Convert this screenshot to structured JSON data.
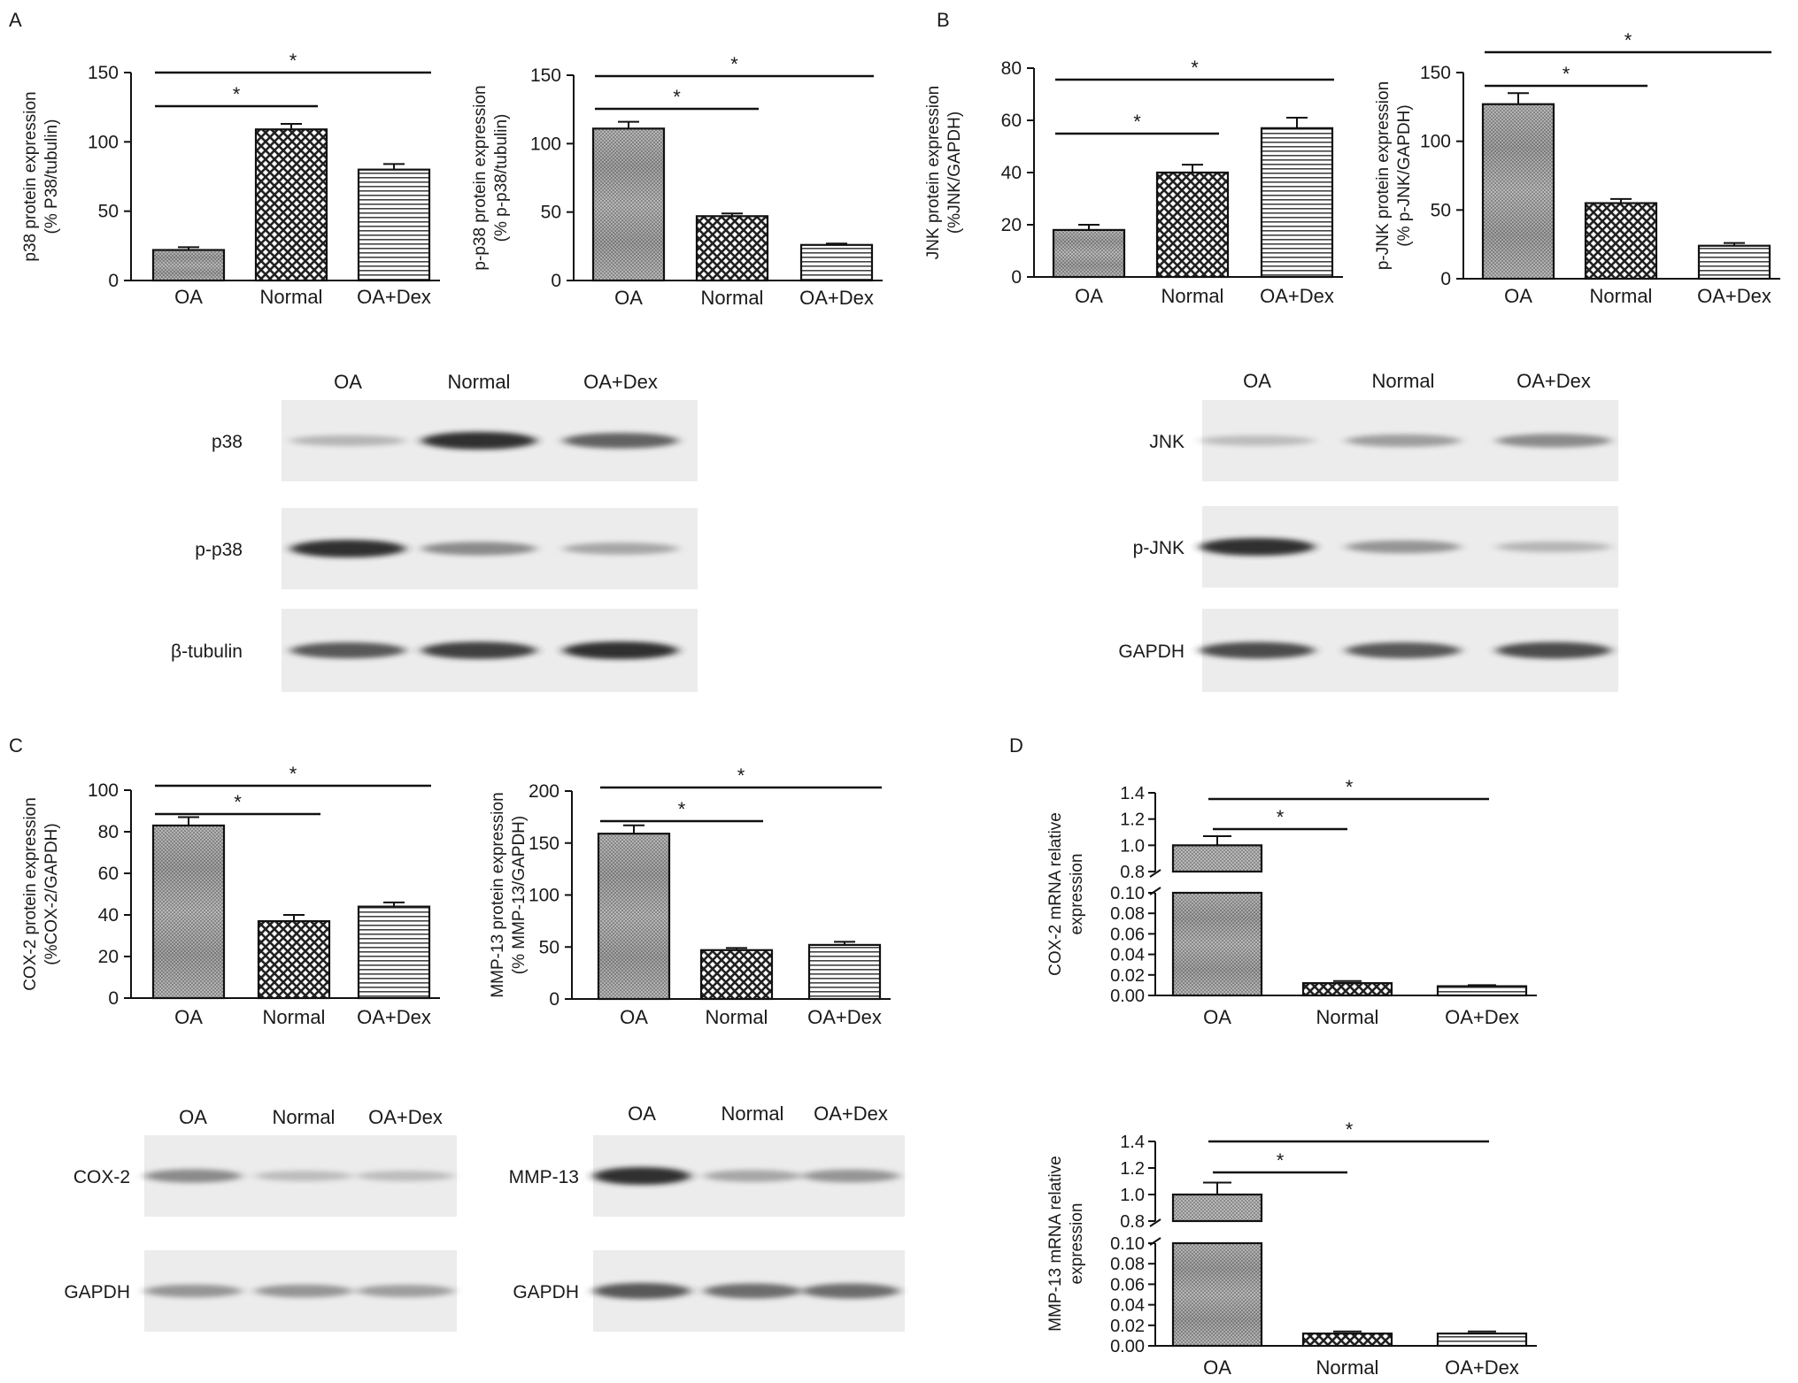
{
  "panels": [
    {
      "id": "A",
      "letter": "A"
    },
    {
      "id": "B",
      "letter": "B"
    },
    {
      "id": "C",
      "letter": "C"
    },
    {
      "id": "D",
      "letter": "D"
    }
  ],
  "chart_data": [
    {
      "id": "A-left",
      "type": "bar",
      "categories": [
        "OA",
        "Normal",
        "OA+Dex"
      ],
      "values": [
        22,
        109,
        80
      ],
      "errors": [
        2,
        4,
        4
      ],
      "ylabel": [
        "p38 protein expression",
        "(% P38/tubulin)"
      ],
      "ylim": [
        0,
        150
      ],
      "yticks": [
        "0",
        "50",
        "100",
        "150"
      ],
      "significance": [
        {
          "from": 0,
          "to": 1,
          "label": "*"
        },
        {
          "from": 0,
          "to": 2,
          "label": "*"
        }
      ]
    },
    {
      "id": "A-right",
      "type": "bar",
      "categories": [
        "OA",
        "Normal",
        "OA+Dex"
      ],
      "values": [
        111,
        47,
        26
      ],
      "errors": [
        5,
        2,
        1
      ],
      "ylabel": [
        "p-p38 protein expression",
        "(% p-p38/tubulin)"
      ],
      "ylim": [
        0,
        150
      ],
      "yticks": [
        "0",
        "50",
        "100",
        "150"
      ],
      "significance": [
        {
          "from": 0,
          "to": 1,
          "label": "*"
        },
        {
          "from": 0,
          "to": 2,
          "label": "*"
        }
      ]
    },
    {
      "id": "B-left",
      "type": "bar",
      "categories": [
        "OA",
        "Normal",
        "OA+Dex"
      ],
      "values": [
        18,
        40,
        57
      ],
      "errors": [
        2,
        3,
        4
      ],
      "ylabel": [
        "JNK protein expression",
        "(%JNK/GAPDH)"
      ],
      "ylim": [
        0,
        80
      ],
      "yticks": [
        "0",
        "20",
        "40",
        "60",
        "80"
      ],
      "significance": [
        {
          "from": 0,
          "to": 1,
          "label": "*"
        },
        {
          "from": 0,
          "to": 2,
          "label": "*"
        }
      ]
    },
    {
      "id": "B-right",
      "type": "bar",
      "categories": [
        "OA",
        "Normal",
        "OA+Dex"
      ],
      "values": [
        127,
        55,
        24
      ],
      "errors": [
        8,
        3,
        2
      ],
      "ylabel": [
        "p-JNK protein expression",
        "(% p-JNK/GAPDH)"
      ],
      "ylim": [
        0,
        150
      ],
      "yticks": [
        "0",
        "50",
        "100",
        "150"
      ],
      "significance": [
        {
          "from": 0,
          "to": 1,
          "label": "*"
        },
        {
          "from": 0,
          "to": 2,
          "label": "*"
        }
      ]
    },
    {
      "id": "C-left",
      "type": "bar",
      "categories": [
        "OA",
        "Normal",
        "OA+Dex"
      ],
      "values": [
        83,
        37,
        44
      ],
      "errors": [
        4,
        3,
        2
      ],
      "ylabel": [
        "COX-2 protein expression",
        "(%COX-2/GAPDH)"
      ],
      "ylim": [
        0,
        100
      ],
      "yticks": [
        "0",
        "20",
        "40",
        "60",
        "80",
        "100"
      ],
      "significance": [
        {
          "from": 0,
          "to": 1,
          "label": "*"
        },
        {
          "from": 0,
          "to": 2,
          "label": "*"
        }
      ]
    },
    {
      "id": "C-right",
      "type": "bar",
      "categories": [
        "OA",
        "Normal",
        "OA+Dex"
      ],
      "values": [
        159,
        47,
        52
      ],
      "errors": [
        8,
        2,
        3
      ],
      "ylabel": [
        "MMP-13 protein expression",
        "(% MMP-13/GAPDH)"
      ],
      "ylim": [
        0,
        200
      ],
      "yticks": [
        "0",
        "50",
        "100",
        "150",
        "200"
      ],
      "significance": [
        {
          "from": 0,
          "to": 1,
          "label": "*"
        },
        {
          "from": 0,
          "to": 2,
          "label": "*"
        }
      ]
    },
    {
      "id": "D-top",
      "type": "bar",
      "broken_axis": true,
      "categories": [
        "OA",
        "Normal",
        "OA+Dex"
      ],
      "values": [
        1.0,
        0.012,
        0.009
      ],
      "errors": [
        0.07,
        0.002,
        0.001
      ],
      "ylabel": [
        "COX-2 mRNA relative",
        "expression"
      ],
      "lower_range": [
        0,
        0.1
      ],
      "upper_range": [
        0.8,
        1.4
      ],
      "lower_ticks": [
        "0.00",
        "0.02",
        "0.04",
        "0.06",
        "0.08",
        "0.10"
      ],
      "upper_ticks": [
        "0.8",
        "1.0",
        "1.2",
        "1.4"
      ],
      "significance": [
        {
          "from": 0,
          "to": 1,
          "label": "*"
        },
        {
          "from": 0,
          "to": 2,
          "label": "*"
        }
      ]
    },
    {
      "id": "D-bottom",
      "type": "bar",
      "broken_axis": true,
      "categories": [
        "OA",
        "Normal",
        "OA+Dex"
      ],
      "values": [
        1.0,
        0.012,
        0.012
      ],
      "errors": [
        0.09,
        0.002,
        0.002
      ],
      "ylabel": [
        "MMP-13 mRNA relative",
        "expression"
      ],
      "lower_range": [
        0,
        0.1
      ],
      "upper_range": [
        0.8,
        1.4
      ],
      "lower_ticks": [
        "0.00",
        "0.02",
        "0.04",
        "0.06",
        "0.08",
        "0.10"
      ],
      "upper_ticks": [
        "0.8",
        "1.0",
        "1.2",
        "1.4"
      ],
      "significance": [
        {
          "from": 0,
          "to": 1,
          "label": "*"
        },
        {
          "from": 0,
          "to": 2,
          "label": "*"
        }
      ]
    }
  ],
  "blots": [
    {
      "id": "blot-A",
      "lanes": [
        "OA",
        "Normal",
        "OA+Dex"
      ],
      "rows": [
        {
          "label": "p38",
          "intensity": [
            0.35,
            1.0,
            0.8
          ]
        },
        {
          "label": "p-p38",
          "intensity": [
            1.0,
            0.6,
            0.45
          ]
        },
        {
          "label": "β-tubulin",
          "intensity": [
            0.85,
            0.95,
            1.0
          ]
        }
      ]
    },
    {
      "id": "blot-B",
      "lanes": [
        "OA",
        "Normal",
        "OA+Dex"
      ],
      "rows": [
        {
          "label": "JNK",
          "intensity": [
            0.3,
            0.5,
            0.6
          ]
        },
        {
          "label": "p-JNK",
          "intensity": [
            1.0,
            0.55,
            0.35
          ]
        },
        {
          "label": "GAPDH",
          "intensity": [
            0.9,
            0.85,
            0.9
          ]
        }
      ]
    },
    {
      "id": "blot-C1",
      "lanes": [
        "OA",
        "Normal",
        "OA+Dex"
      ],
      "rows": [
        {
          "label": "COX-2",
          "intensity": [
            0.6,
            0.3,
            0.3
          ]
        },
        {
          "label": "GAPDH",
          "intensity": [
            0.55,
            0.55,
            0.5
          ]
        }
      ]
    },
    {
      "id": "blot-C2",
      "lanes": [
        "OA",
        "Normal",
        "OA+Dex"
      ],
      "rows": [
        {
          "label": "MMP-13",
          "intensity": [
            1.0,
            0.45,
            0.55
          ]
        },
        {
          "label": "GAPDH",
          "intensity": [
            0.85,
            0.75,
            0.75
          ]
        }
      ]
    }
  ]
}
